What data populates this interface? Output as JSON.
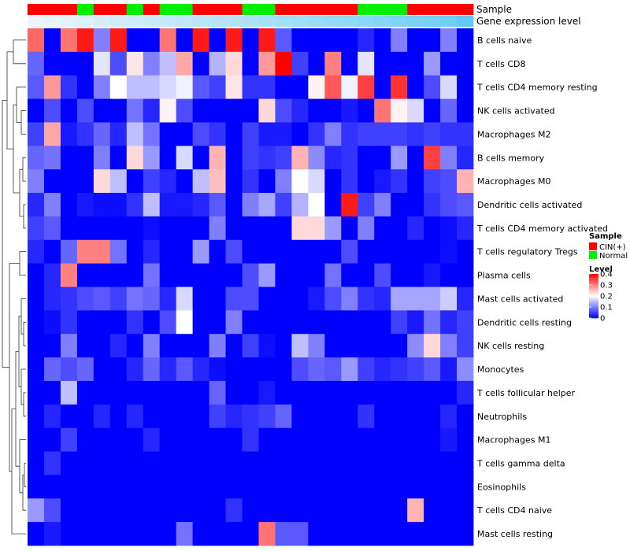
{
  "chart_data": {
    "type": "heatmap",
    "title": "",
    "annotation_labels": [
      "Sample",
      "Gene expression level"
    ],
    "row_labels": [
      "B cells naive",
      "T cells CD8",
      "T cells CD4 memory resting",
      "NK cells activated",
      "Macrophages M2",
      "B cells memory",
      "Macrophages M0",
      "Dendritic cells activated",
      "T cells CD4 memory activated",
      "T cells regulatory  Tregs",
      "Plasma cells",
      "Mast cells activated",
      "Dendritic cells resting",
      "NK cells resting",
      "Monocytes",
      "T cells follicular helper",
      "Neutrophils",
      "Macrophages M1",
      "T cells gamma delta",
      "Eosinophils",
      "T cells CD4 naive",
      "Mast cells resting"
    ],
    "sample_groups": [
      "CIN(+)",
      "CIN(+)",
      "CIN(+)",
      "Normal",
      "CIN(+)",
      "CIN(+)",
      "Normal",
      "CIN(+)",
      "Normal",
      "Normal",
      "CIN(+)",
      "CIN(+)",
      "CIN(+)",
      "Normal",
      "Normal",
      "CIN(+)",
      "CIN(+)",
      "CIN(+)",
      "CIN(+)",
      "CIN(+)",
      "Normal",
      "Normal",
      "Normal",
      "CIN(+)",
      "CIN(+)",
      "CIN(+)",
      "CIN(+)"
    ],
    "expression_level": [
      0.02,
      0.05,
      0.08,
      0.11,
      0.15,
      0.19,
      0.22,
      0.25,
      0.28,
      0.31,
      0.35,
      0.38,
      0.41,
      0.44,
      0.48,
      0.51,
      0.54,
      0.58,
      0.61,
      0.64,
      0.68,
      0.71,
      0.74,
      0.78,
      0.82,
      0.88,
      0.95
    ],
    "values": [
      [
        0.32,
        0.0,
        0.31,
        0.38,
        0.1,
        0.38,
        0.0,
        0.0,
        0.31,
        0.0,
        0.38,
        0.0,
        0.38,
        0.0,
        0.38,
        0.07,
        0.0,
        0.0,
        0.0,
        0.0,
        0.03,
        0.0,
        0.1,
        0.0,
        0.0,
        0.1,
        0.0
      ],
      [
        0.08,
        0.0,
        0.0,
        0.0,
        0.18,
        0.06,
        0.22,
        0.1,
        0.15,
        0.27,
        0.0,
        0.14,
        0.23,
        0.0,
        0.28,
        0.4,
        0.05,
        0.0,
        0.3,
        0.0,
        0.18,
        0.0,
        0.0,
        0.0,
        0.12,
        0.0,
        0.0
      ],
      [
        0.07,
        0.28,
        0.04,
        0.0,
        0.1,
        0.2,
        0.15,
        0.15,
        0.17,
        0.19,
        0.07,
        0.05,
        0.22,
        0.04,
        0.04,
        0.0,
        0.0,
        0.21,
        0.33,
        0.19,
        0.35,
        0.0,
        0.36,
        0.0,
        0.06,
        0.17,
        0.0
      ],
      [
        0.0,
        0.06,
        0.0,
        0.06,
        0.0,
        0.0,
        0.09,
        0.03,
        0.21,
        0.06,
        0.0,
        0.0,
        0.0,
        0.0,
        0.23,
        0.06,
        0.03,
        0.0,
        0.0,
        0.02,
        0.0,
        0.31,
        0.21,
        0.17,
        0.0,
        0.08,
        0.0
      ],
      [
        0.05,
        0.27,
        0.02,
        0.04,
        0.08,
        0.03,
        0.15,
        0.09,
        0.0,
        0.0,
        0.06,
        0.04,
        0.0,
        0.05,
        0.02,
        0.02,
        0.0,
        0.04,
        0.1,
        0.04,
        0.05,
        0.05,
        0.05,
        0.04,
        0.05,
        0.04,
        0.04
      ],
      [
        0.08,
        0.09,
        0.0,
        0.0,
        0.1,
        0.0,
        0.23,
        0.12,
        0.0,
        0.17,
        0.0,
        0.26,
        0.0,
        0.05,
        0.04,
        0.05,
        0.26,
        0.11,
        0.03,
        0.04,
        0.0,
        0.0,
        0.12,
        0.0,
        0.35,
        0.1,
        0.03
      ],
      [
        0.1,
        0.0,
        0.0,
        0.0,
        0.23,
        0.15,
        0.0,
        0.05,
        0.03,
        0.0,
        0.15,
        0.25,
        0.0,
        0.04,
        0.0,
        0.1,
        0.2,
        0.17,
        0.0,
        0.04,
        0.0,
        0.02,
        0.04,
        0.0,
        0.05,
        0.06,
        0.26
      ],
      [
        0.03,
        0.1,
        0.0,
        0.02,
        0.01,
        0.01,
        0.04,
        0.15,
        0.02,
        0.02,
        0.03,
        0.07,
        0.0,
        0.1,
        0.13,
        0.05,
        0.14,
        0.2,
        0.0,
        0.38,
        0.05,
        0.1,
        0.0,
        0.0,
        0.04,
        0.06,
        0.07
      ],
      [
        0.05,
        0.07,
        0.0,
        0.0,
        0.0,
        0.0,
        0.0,
        0.01,
        0.0,
        0.0,
        0.0,
        0.1,
        0.0,
        0.0,
        0.0,
        0.0,
        0.23,
        0.23,
        0.12,
        0.0,
        0.1,
        0.0,
        0.0,
        0.03,
        0.0,
        0.01,
        0.03
      ],
      [
        0.03,
        0.0,
        0.08,
        0.3,
        0.3,
        0.09,
        0.0,
        0.03,
        0.0,
        0.0,
        0.12,
        0.0,
        0.06,
        0.0,
        0.0,
        0.0,
        0.0,
        0.0,
        0.0,
        0.06,
        0.0,
        0.0,
        0.0,
        0.0,
        0.0,
        0.01,
        0.0
      ],
      [
        0.0,
        0.03,
        0.3,
        0.0,
        0.0,
        0.0,
        0.0,
        0.09,
        0.0,
        0.0,
        0.0,
        0.0,
        0.0,
        0.06,
        0.12,
        0.0,
        0.0,
        0.0,
        0.09,
        0.0,
        0.0,
        0.06,
        0.0,
        0.0,
        0.02,
        0.0,
        0.0
      ],
      [
        0.0,
        0.03,
        0.04,
        0.06,
        0.07,
        0.05,
        0.09,
        0.08,
        0.03,
        0.17,
        0.0,
        0.0,
        0.06,
        0.06,
        0.0,
        0.0,
        0.0,
        0.02,
        0.06,
        0.1,
        0.04,
        0.03,
        0.13,
        0.13,
        0.13,
        0.16,
        0.03
      ],
      [
        0.0,
        0.01,
        0.04,
        0.0,
        0.0,
        0.0,
        0.04,
        0.0,
        0.06,
        0.2,
        0.0,
        0.0,
        0.1,
        0.0,
        0.0,
        0.0,
        0.0,
        0.0,
        0.0,
        0.0,
        0.0,
        0.0,
        0.05,
        0.02,
        0.09,
        0.03,
        0.05
      ],
      [
        0.0,
        0.0,
        0.1,
        0.0,
        0.0,
        0.03,
        0.0,
        0.1,
        0.0,
        0.0,
        0.0,
        0.1,
        0.0,
        0.05,
        0.01,
        0.0,
        0.15,
        0.1,
        0.0,
        0.0,
        0.0,
        0.0,
        0.0,
        0.11,
        0.23,
        0.1,
        0.05
      ],
      [
        0.0,
        0.08,
        0.06,
        0.08,
        0.0,
        0.0,
        0.03,
        0.08,
        0.03,
        0.07,
        0.03,
        0.01,
        0.0,
        0.0,
        0.0,
        0.0,
        0.06,
        0.08,
        0.07,
        0.12,
        0.05,
        0.03,
        0.04,
        0.05,
        0.07,
        0.02,
        0.11
      ],
      [
        0.0,
        0.0,
        0.15,
        0.0,
        0.0,
        0.0,
        0.0,
        0.0,
        0.0,
        0.0,
        0.0,
        0.08,
        0.0,
        0.0,
        0.02,
        0.0,
        0.0,
        0.0,
        0.0,
        0.0,
        0.0,
        0.0,
        0.0,
        0.0,
        0.0,
        0.0,
        0.03
      ],
      [
        0.0,
        0.03,
        0.0,
        0.0,
        0.03,
        0.0,
        0.03,
        0.0,
        0.0,
        0.0,
        0.0,
        0.05,
        0.03,
        0.04,
        0.05,
        0.08,
        0.0,
        0.0,
        0.0,
        0.0,
        0.04,
        0.0,
        0.0,
        0.0,
        0.0,
        0.03,
        0.0
      ],
      [
        0.0,
        0.0,
        0.05,
        0.0,
        0.0,
        0.0,
        0.0,
        0.03,
        0.0,
        0.0,
        0.0,
        0.0,
        0.0,
        0.04,
        0.0,
        0.0,
        0.0,
        0.0,
        0.0,
        0.0,
        0.0,
        0.0,
        0.0,
        0.0,
        0.0,
        0.02,
        0.0
      ],
      [
        0.0,
        0.04,
        0.0,
        0.0,
        0.0,
        0.0,
        0.0,
        0.0,
        0.0,
        0.0,
        0.0,
        0.0,
        0.0,
        0.0,
        0.0,
        0.0,
        0.0,
        0.0,
        0.0,
        0.0,
        0.0,
        0.0,
        0.0,
        0.0,
        0.0,
        0.0,
        0.0
      ],
      [
        0.0,
        0.0,
        0.0,
        0.0,
        0.0,
        0.0,
        0.0,
        0.0,
        0.0,
        0.0,
        0.0,
        0.0,
        0.0,
        0.0,
        0.0,
        0.0,
        0.0,
        0.0,
        0.0,
        0.0,
        0.0,
        0.0,
        0.0,
        0.0,
        0.0,
        0.0,
        0.0
      ],
      [
        0.12,
        0.06,
        0.0,
        0.0,
        0.0,
        0.0,
        0.0,
        0.0,
        0.0,
        0.0,
        0.0,
        0.0,
        0.04,
        0.0,
        0.0,
        0.0,
        0.0,
        0.0,
        0.0,
        0.0,
        0.0,
        0.0,
        0.0,
        0.26,
        0.0,
        0.0,
        0.0
      ],
      [
        0.0,
        0.02,
        0.0,
        0.0,
        0.0,
        0.0,
        0.0,
        0.0,
        0.0,
        0.09,
        0.0,
        0.0,
        0.0,
        0.0,
        0.31,
        0.07,
        0.07,
        0.0,
        0.0,
        0.0,
        0.0,
        0.0,
        0.0,
        0.0,
        0.0,
        0.0,
        0.0
      ]
    ],
    "color_scale": {
      "stops": [
        {
          "value": 0.0,
          "color": "#0000FF"
        },
        {
          "value": 0.2,
          "color": "#FFFFFF"
        },
        {
          "value": 0.4,
          "color": "#FF0000"
        }
      ]
    },
    "legend": {
      "sample_title": "Sample",
      "sample_entries": [
        {
          "label": "CIN(+)",
          "color": "#FF0000"
        },
        {
          "label": "Normal",
          "color": "#00EE00"
        }
      ],
      "level_title": "Level",
      "level_ticks": [
        "0.4",
        "0.3",
        "0.2",
        "0.1",
        "0"
      ],
      "level_tick_values": [
        0.4,
        0.3,
        0.2,
        0.1,
        0.0
      ],
      "placement": "right"
    },
    "expression_colors": [
      "#EEF6FB",
      "#5BC8F5"
    ],
    "dendrogram": "hierarchical clustering of rows (left)"
  }
}
